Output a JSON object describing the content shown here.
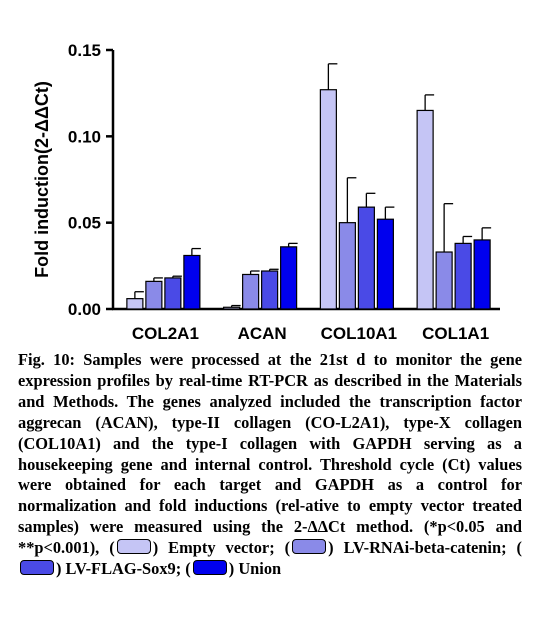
{
  "chart_data": {
    "type": "bar",
    "ylabel": "Fold induction(2-ΔΔCt)",
    "xlabel": "",
    "ylim": [
      0,
      0.15
    ],
    "yticks": [
      "0.00",
      "0.05",
      "0.10",
      "0.15"
    ],
    "categories": [
      "COL2A1",
      "ACAN",
      "COL10A1",
      "COL1A1"
    ],
    "series": [
      {
        "name": "Empty vector",
        "color": "#c5c5f5",
        "values": [
          0.006,
          0.001,
          0.127,
          0.115
        ],
        "errors": [
          0.004,
          0.001,
          0.015,
          0.009
        ]
      },
      {
        "name": "LV-RNAi-beta-catenin",
        "color": "#8a8ae8",
        "values": [
          0.016,
          0.02,
          0.05,
          0.033
        ],
        "errors": [
          0.002,
          0.002,
          0.026,
          0.028
        ]
      },
      {
        "name": "LV-FLAG-Sox9",
        "color": "#4a4ae6",
        "values": [
          0.018,
          0.022,
          0.059,
          0.038
        ],
        "errors": [
          0.001,
          0.001,
          0.008,
          0.004
        ]
      },
      {
        "name": "Union",
        "color": "#0000ee",
        "values": [
          0.031,
          0.036,
          0.052,
          0.04
        ],
        "errors": [
          0.004,
          0.002,
          0.007,
          0.007
        ]
      }
    ],
    "grid": false,
    "legend": "none"
  },
  "caption": {
    "label": "Fig. 10:",
    "text": "Samples were processed at the 21st d to monitor the gene expression profiles by real-time RT-PCR as described in the Materials and Methods. The genes analyzed included the transcription factor aggrecan (ACAN), type-II collagen (CO-L2A1), type-X collagen (COL10A1) and the type-I collagen with GAPDH serving as a housekeeping gene and internal control. Threshold cycle (Ct) values were obtained for each target and GAPDH as a control for normalization and fold inductions (rel-ative to empty vector treated samples) were measured using the 2-ΔΔCt method. (*p<0.05 and **p<0.001), (",
    "legend_items": [
      {
        "label": ") Empty vector;",
        "color": "#c5c5f5"
      },
      {
        "label": ") LV-RNAi-beta-catenin; (",
        "color": "#8a8ae8"
      },
      {
        "label": ") LV-FLAG-Sox9; (",
        "color": "#4a4ae6"
      },
      {
        "label": ")",
        "color": "#0000ee"
      }
    ],
    "tail": "Union"
  }
}
